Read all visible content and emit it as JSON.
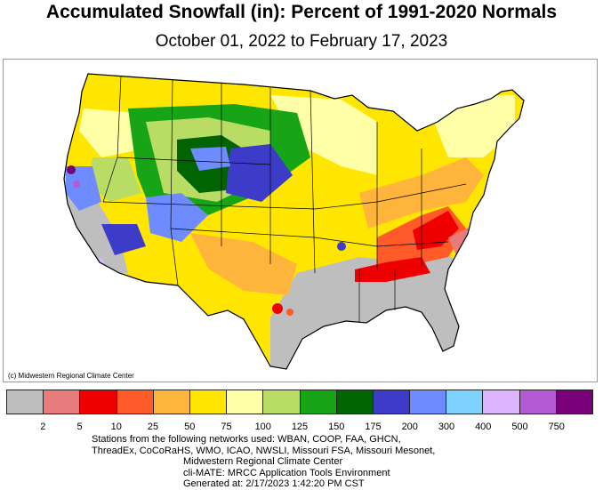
{
  "title": "Accumulated Snowfall (in): Percent of 1991-2020 Normals",
  "subtitle": "October 01, 2022 to February 17, 2023",
  "credit": "(c) Midwestern Regional Climate Center",
  "legend": {
    "colors": [
      "#bebebe",
      "#e87c7c",
      "#ee0000",
      "#ff5a28",
      "#ffb43c",
      "#ffe600",
      "#ffffa8",
      "#b9dc64",
      "#17a517",
      "#006400",
      "#3c3cc8",
      "#6e8cff",
      "#7dd2ff",
      "#dcb4ff",
      "#b45ad2",
      "#780078"
    ],
    "ticks": [
      "2",
      "5",
      "10",
      "25",
      "50",
      "75",
      "100",
      "125",
      "150",
      "175",
      "200",
      "300",
      "400",
      "500",
      "750"
    ]
  },
  "footer": {
    "line1": "Stations from the following networks used: WBAN, COOP, FAA, GHCN,",
    "line2": "ThreadEx, CoCoRaHS, WMO, ICAO, NWSLI, Missouri FSA, Missouri Mesonet,",
    "line3": "Midwestern Regional Climate Center",
    "line4": "cli-MATE: MRCC Application Tools Environment",
    "line5": "Generated at: 2/17/2023 1:42:20 PM CST"
  }
}
